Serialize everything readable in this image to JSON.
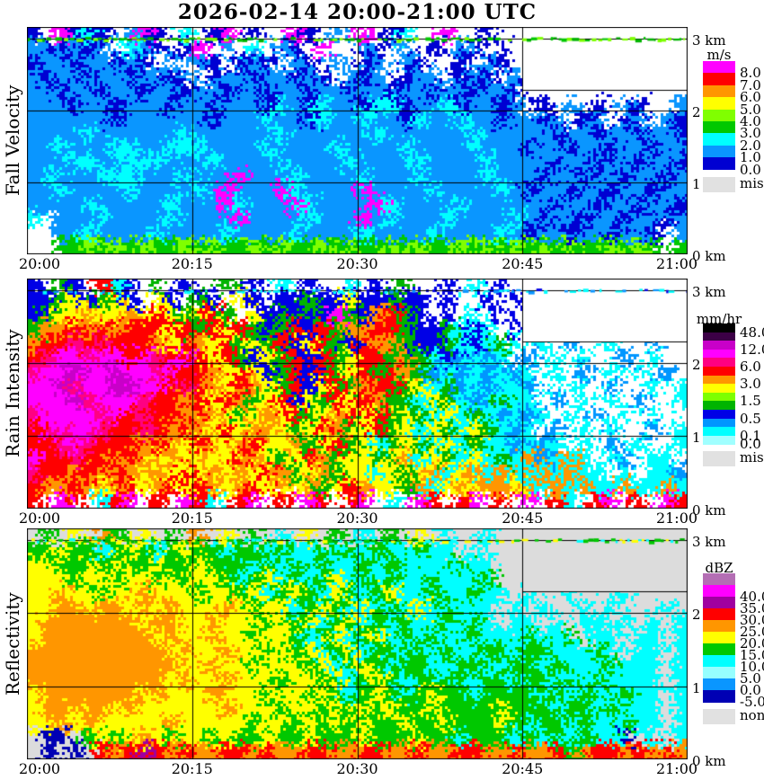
{
  "title": "2026-02-14  20:00-21:00 UTC",
  "chart_data": {
    "type": "heatmap",
    "x_axis": {
      "ticks": [
        "20:00",
        "20:15",
        "20:30",
        "20:45",
        "21:00"
      ]
    },
    "y_axis": {
      "ticks": [
        "3 km",
        "2 km",
        "1 km",
        "0 km"
      ],
      "range_km": [
        0,
        3.1
      ]
    },
    "panels": [
      {
        "id": "fall-velocity",
        "ylabel": "Fall Velocity",
        "legend_title": "m/s",
        "legend": [
          {
            "color": "#FF00FF",
            "label": "8.0"
          },
          {
            "color": "#FF0000",
            "label": "7.0"
          },
          {
            "color": "#FF9600",
            "label": "6.0"
          },
          {
            "color": "#FFFF00",
            "label": "5.0"
          },
          {
            "color": "#80FF00",
            "label": "4.0"
          },
          {
            "color": "#00C800",
            "label": "3.0"
          },
          {
            "color": "#00FFFF",
            "label": "2.0"
          },
          {
            "color": "#0A96FF",
            "label": "1.0"
          },
          {
            "color": "#0000D2",
            "label": "0.0"
          }
        ],
        "nodata": {
          "label": "miss",
          "color": "#E1E1E1"
        },
        "nodata_box_color": "#FFFFFF",
        "topline_colors": [
          "#00C800",
          "#7DFF00",
          "#00B400"
        ],
        "topline_density": 0.8,
        "palette": {
          ".": "#FFFFFF",
          "0": "#0000D2",
          "1": "#0A96FF",
          "2": "#00FFFF",
          "3": "#00C800",
          "4": "#80FF00",
          "5": "#FFFF00",
          "6": "#FF9600",
          "7": "#FF0000",
          "8": "#FF00FF"
        },
        "grid": [
          "0.8020.180.2.08.0..80.1.8.02..8..0..............",
          "110101.210.08.1.2.10.8..10.1.0.10.0.............",
          "011011010.1.10.010.10.1.01.10..0.10.............",
          "101101101101.011011010.101.011.010.1............",
          "110110110110110110110110110110110110............",
          "111011011101101110210211022011201101.0.1.0.10..1",
          "111111011111101112110211211021121101101.01.01.10",
          "111121111112111111211111121111112111110110110110",
          "112111221122211112111121111211112111011011011011",
          "111221122211121111211112111121111211110110110110",
          "121112221112111811121111211121111211101101101101",
          "112111121111218111821111811112111121011011011011",
          "111121111121118211182111182111121111110110110110",
          "2.1112111121111811112111812111211112101101101101",
          "..11211112111121111211112111121111210110110110.1",
          "..33434343343433434334343343433434343434334343.3"
        ]
      },
      {
        "id": "rain-intensity",
        "ylabel": "Rain Intensity",
        "legend_title": "mm/hr",
        "legend": [
          {
            "color": "#000000",
            "label": "48.0"
          },
          {
            "color": "#3C0046",
            "label": ""
          },
          {
            "color": "#C800C8",
            "label": "12.0"
          },
          {
            "color": "#FF00FF",
            "label": ""
          },
          {
            "color": "#FF0082",
            "label": "6.0"
          },
          {
            "color": "#FF0000",
            "label": ""
          },
          {
            "color": "#FF9600",
            "label": "3.0"
          },
          {
            "color": "#FFFF00",
            "label": ""
          },
          {
            "color": "#7DFF00",
            "label": "1.5"
          },
          {
            "color": "#00B400",
            "label": ""
          },
          {
            "color": "#0000E6",
            "label": "0.5"
          },
          {
            "color": "#0096FF",
            "label": ""
          },
          {
            "color": "#00FFFF",
            "label": "0.1"
          },
          {
            "color": "#A0FFFF",
            "label": "0.0"
          }
        ],
        "nodata": {
          "label": "miss",
          "color": "#E1E1E1"
        },
        "nodata_box_color": "#FFFFFF",
        "topline_colors": [
          "#00FFFF",
          "#0A96FF",
          "#0000E6"
        ],
        "topline_density": 0.55,
        "palette": {
          ".": "#FFFFFF",
          "a": "#A0FFFF",
          "b": "#00FFFF",
          "c": "#0096FF",
          "d": "#0000E6",
          "e": "#00B400",
          "f": "#7DFF00",
          "g": "#FFFF00",
          "h": "#FF9600",
          "i": "#FF0000",
          "j": "#FF0082",
          "k": "#FF00FF",
          "l": "#C800C8",
          "n": "#3C0046",
          "o": "#000000"
        },
        "grid": [
          "d.ed.ibd.e.d..e.d.b.d..b.d.e..d.b.d.............",
          "ddegdegd.gd.ed.gd.ddeddgddedd.d..d.d............",
          "degghgghgigegie.gdededkedhied.d.b.d.............",
          "ehhihihiiigieigiedeidiehhiieddebdb.d............",
          "hiijijiiihgihgiegeidgiedihheddebdbeb.b.c..b..c..",
          "ijkkjkkikjikigiedgeidiegiiehebdcbcb.c.b.b..c.b..",
          "jkklkklkkjkiihgigdeidiegieihecbcbcbcb.b.c.b.b.c.",
          "kkljkkllkkijihgihgeidgiehiiegbecbcbbc.b.b.c..b.b",
          "kkkljkkkjiihigihegidgeigiheebgebcbebb.c.b.b.c..b",
          "jkkkkjkijiihihgeghgieghigiegebgbebcbcb.b.c.b.b..",
          "ikjkkjiijihihgighhgegihegiegbgebgebcb.c.b.b..c.b",
          "iijkjiiihihgihghigghegiegbegebgbebbcbcb.b.c.b..b",
          "kiijiihihghghggihgegiheggeghbgebgbebhcbhb.bc.bb.",
          "jiihihihghgighghgihegheggbgeghbghbhbbhbhbb.b.bbc",
          "ihhihghighigihghighghegihggehbghghhghbhbhbbhbbhb",
          "i.ki.bik.i.kib.ik.i.ki.ik.b.ki.ik.i.k.ib.ik.i.ki"
        ]
      },
      {
        "id": "reflectivity",
        "ylabel": "Reflectivity",
        "legend_title": "dBZ",
        "legend": [
          {
            "color": "#B46EB4",
            "label": ""
          },
          {
            "color": "#FF00FF",
            "label": "40.0"
          },
          {
            "color": "#A000A0",
            "label": "35.0"
          },
          {
            "color": "#FF0000",
            "label": "30.0"
          },
          {
            "color": "#FF9600",
            "label": "25.0"
          },
          {
            "color": "#FFFF00",
            "label": "20.0"
          },
          {
            "color": "#00C800",
            "label": "15.0"
          },
          {
            "color": "#00FFFF",
            "label": "10.0"
          },
          {
            "color": "#96FFFF",
            "label": "5.0"
          },
          {
            "color": "#0A96FF",
            "label": "0.0"
          },
          {
            "color": "#0000B4",
            "label": "-5.0"
          }
        ],
        "nodata": {
          "label": "none",
          "color": "#E1E1E1"
        },
        "nodata_box_color": "#DCDCDC",
        "topline_colors": [
          "#00C800",
          "#FFFF00",
          "#00FFFF",
          "#00B400"
        ],
        "topline_density": 0.85,
        "palette": {
          ".": "#FFFFFF",
          "m": "#DCDCDC",
          "0": "#0000B4",
          "1": "#0A96FF",
          "2": "#96FFFF",
          "3": "#00FFFF",
          "4": "#00C800",
          "5": "#FFFF00",
          "6": "#FF9600",
          "7": "#FF0000",
          "8": "#A000A0",
          "9": "#FF00FF"
        },
        "grid": [
          "m4m5m64m5m4m6m5m4m3m5m4m3m4m5m3mm3mmmmmmmmmmmmmm",
          "4454434543454434434334343433433m3mmmmmmmmmmmmmmm",
          "5544545445445444343434334343333433mmmmmmmmmmmmmm",
          "5554554554545543453434534343343334mmmmmmmmmmmmmm",
          "55655455655545545345435434533433433m3mm3mmm3mmmm",
          "5566566565655565455345435343534333m3m3mm3m3mmm3m",
          "5666666656655655545453453434334343m33m3m33m3m3m3",
          "5666666665655655455434534534343343334334m33m33m3",
          "6666666666565565545453453443434334434433343m33m3",
          "6666666666655655455545345434433443344343334333m3",
          "6666666666565565554554534543443434434434343333m3",
          "5666666656555655545545434543454434444343433433m3",
          "5665665655555565554554545454454444544434434333m3",
          "5565655555655555455454545445445444543443433433m3",
          "m00m4545654554544544544454445443444343434330m3m3",
          "m0m0m7678767667767667766776676677667667467767676"
        ]
      }
    ]
  }
}
